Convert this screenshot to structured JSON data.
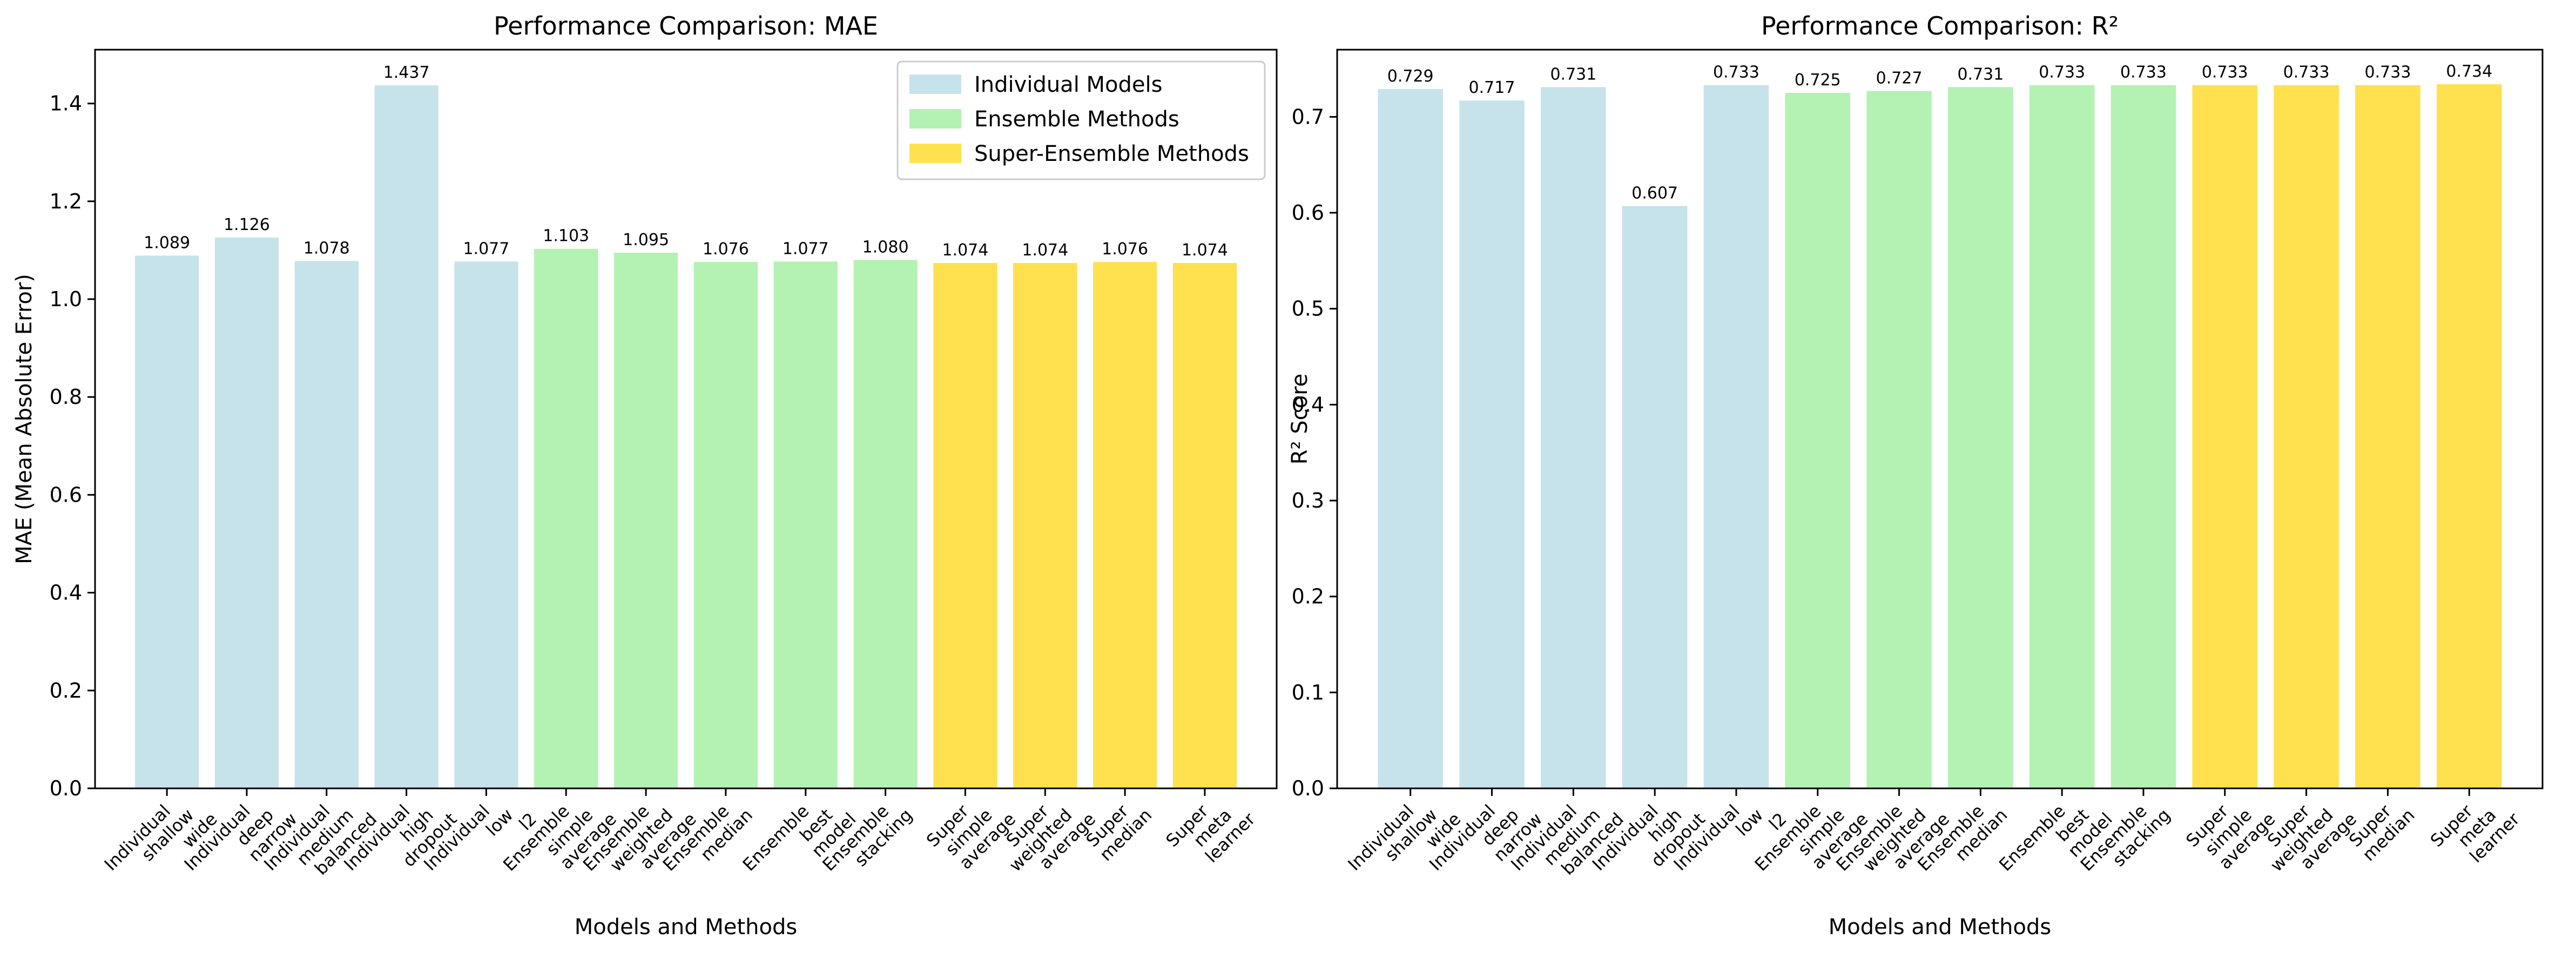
{
  "chart_data": [
    {
      "type": "bar",
      "title": "Performance Comparison: MAE",
      "xlabel": "Models and Methods",
      "ylabel": "MAE (Mean Absolute Error)",
      "ylim": [
        0,
        1.51
      ],
      "yticks": [
        0.0,
        0.2,
        0.4,
        0.6,
        0.8,
        1.0,
        1.2,
        1.4
      ],
      "grid": false,
      "legend_position": "top-right",
      "categories": [
        [
          "Individual",
          "shallow",
          "wide"
        ],
        [
          "Individual",
          "deep",
          "narrow"
        ],
        [
          "Individual",
          "medium",
          "balanced"
        ],
        [
          "Individual",
          "high",
          "dropout"
        ],
        [
          "Individual",
          "low",
          "l2"
        ],
        [
          "Ensemble",
          "simple",
          "average"
        ],
        [
          "Ensemble",
          "weighted",
          "average"
        ],
        [
          "Ensemble",
          "median"
        ],
        [
          "Ensemble",
          "best",
          "model"
        ],
        [
          "Ensemble",
          "stacking"
        ],
        [
          "Super",
          "simple",
          "average"
        ],
        [
          "Super",
          "weighted",
          "average"
        ],
        [
          "Super",
          "median"
        ],
        [
          "Super",
          "meta",
          "learner"
        ]
      ],
      "values": [
        1.089,
        1.126,
        1.078,
        1.437,
        1.077,
        1.103,
        1.095,
        1.076,
        1.077,
        1.08,
        1.074,
        1.074,
        1.076,
        1.074
      ],
      "value_labels": [
        "1.089",
        "1.126",
        "1.078",
        "1.437",
        "1.077",
        "1.103",
        "1.095",
        "1.076",
        "1.077",
        "1.080",
        "1.074",
        "1.074",
        "1.076",
        "1.074"
      ],
      "groups": [
        0,
        0,
        0,
        0,
        0,
        1,
        1,
        1,
        1,
        1,
        2,
        2,
        2,
        2
      ],
      "legend": [
        {
          "name": "Individual Models",
          "color": "#c6e3ec"
        },
        {
          "name": "Ensemble Methods",
          "color": "#b3f2b3"
        },
        {
          "name": "Super-Ensemble Methods",
          "color": "#ffe14f"
        }
      ]
    },
    {
      "type": "bar",
      "title": "Performance Comparison: R²",
      "xlabel": "Models and Methods",
      "ylabel": "R² Score",
      "ylim": [
        0,
        0.77
      ],
      "yticks": [
        0.0,
        0.1,
        0.2,
        0.3,
        0.4,
        0.5,
        0.6,
        0.7
      ],
      "grid": false,
      "categories": [
        [
          "Individual",
          "shallow",
          "wide"
        ],
        [
          "Individual",
          "deep",
          "narrow"
        ],
        [
          "Individual",
          "medium",
          "balanced"
        ],
        [
          "Individual",
          "high",
          "dropout"
        ],
        [
          "Individual",
          "low",
          "l2"
        ],
        [
          "Ensemble",
          "simple",
          "average"
        ],
        [
          "Ensemble",
          "weighted",
          "average"
        ],
        [
          "Ensemble",
          "median"
        ],
        [
          "Ensemble",
          "best",
          "model"
        ],
        [
          "Ensemble",
          "stacking"
        ],
        [
          "Super",
          "simple",
          "average"
        ],
        [
          "Super",
          "weighted",
          "average"
        ],
        [
          "Super",
          "median"
        ],
        [
          "Super",
          "meta",
          "learner"
        ]
      ],
      "values": [
        0.729,
        0.717,
        0.731,
        0.607,
        0.733,
        0.725,
        0.727,
        0.731,
        0.733,
        0.733,
        0.733,
        0.733,
        0.733,
        0.734
      ],
      "value_labels": [
        "0.729",
        "0.717",
        "0.731",
        "0.607",
        "0.733",
        "0.725",
        "0.727",
        "0.731",
        "0.733",
        "0.733",
        "0.733",
        "0.733",
        "0.733",
        "0.734"
      ],
      "groups": [
        0,
        0,
        0,
        0,
        0,
        1,
        1,
        1,
        1,
        1,
        2,
        2,
        2,
        2
      ],
      "colors": [
        "#c6e3ec",
        "#b3f2b3",
        "#ffe14f"
      ]
    }
  ]
}
